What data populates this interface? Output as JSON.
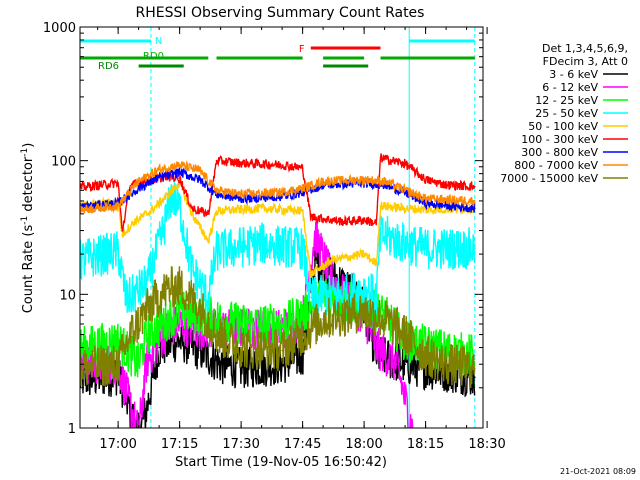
{
  "chart_data": {
    "type": "line",
    "title": "RHESSI Observing Summary Count Rates",
    "xlabel": "Start Time (19-Nov-05 16:50:42)",
    "ylabel_main": "Count Rate (s",
    "ylabel_sup1": "-1",
    "ylabel_mid": " detector",
    "ylabel_sup2": "-1",
    "ylabel_end": ")",
    "yscale": "log",
    "xlim": [
      "16:50:42",
      "18:29:00"
    ],
    "ylim": [
      1,
      1000
    ],
    "x_ticks": [
      "17:00",
      "17:15",
      "17:30",
      "17:45",
      "18:00",
      "18:15",
      "18:30"
    ],
    "y_ticks": [
      "1",
      "10",
      "100",
      "1000"
    ],
    "grid": false,
    "legend_position": "right",
    "legend_header": [
      "Det 1,3,4,5,6,9,",
      "FDecim 3, Att 0"
    ],
    "series": [
      {
        "name": "3 - 6 keV",
        "color": "#000000",
        "points": [
          [
            "16:50:42",
            2.3
          ],
          [
            "17:00",
            2.5
          ],
          [
            "17:05",
            0.9
          ],
          [
            "17:07",
            1.4
          ],
          [
            "17:10",
            4.0
          ],
          [
            "17:15",
            4.5
          ],
          [
            "17:20",
            3.8
          ],
          [
            "17:25",
            3.0
          ],
          [
            "17:30",
            2.8
          ],
          [
            "17:40",
            3.0
          ],
          [
            "17:45",
            3.5
          ],
          [
            "17:48",
            18
          ],
          [
            "17:52",
            14
          ],
          [
            "17:56",
            11
          ],
          [
            "18:00",
            8
          ],
          [
            "18:03",
            3.5
          ],
          [
            "18:10",
            3.0
          ],
          [
            "18:15",
            2.8
          ],
          [
            "18:25",
            2.5
          ],
          [
            "18:27",
            2.4
          ]
        ]
      },
      {
        "name": "6 - 12 keV",
        "color": "#ff00ff",
        "points": [
          [
            "16:50:42",
            3.0
          ],
          [
            "17:00",
            3.0
          ],
          [
            "17:05",
            0.9
          ],
          [
            "17:07",
            3.2
          ],
          [
            "17:12",
            5.5
          ],
          [
            "17:15",
            6.0
          ],
          [
            "17:20",
            5.5
          ],
          [
            "17:30",
            5.5
          ],
          [
            "17:40",
            5.5
          ],
          [
            "17:45",
            6.5
          ],
          [
            "17:48",
            28
          ],
          [
            "17:52",
            13
          ],
          [
            "17:56",
            9
          ],
          [
            "18:00",
            7
          ],
          [
            "18:03",
            4.0
          ],
          [
            "18:08",
            3.0
          ],
          [
            "18:12",
            0.9
          ]
        ]
      },
      {
        "name": "12 - 25 keV",
        "color": "#00ff00",
        "points": [
          [
            "16:50:42",
            4.0
          ],
          [
            "17:00",
            4.5
          ],
          [
            "17:05",
            3.0
          ],
          [
            "17:07",
            5.0
          ],
          [
            "17:15",
            7.5
          ],
          [
            "17:20",
            7.0
          ],
          [
            "17:25",
            6.5
          ],
          [
            "17:30",
            6.0
          ],
          [
            "17:40",
            6.0
          ],
          [
            "17:45",
            7.0
          ],
          [
            "17:50",
            10
          ],
          [
            "17:55",
            9
          ],
          [
            "18:00",
            8
          ],
          [
            "18:05",
            7
          ],
          [
            "18:10",
            4.5
          ],
          [
            "18:20",
            3.8
          ],
          [
            "18:27",
            3.5
          ]
        ]
      },
      {
        "name": "25 - 50 keV",
        "color": "#00ffff",
        "points": [
          [
            "16:50:42",
            18
          ],
          [
            "17:00",
            21
          ],
          [
            "17:02",
            9
          ],
          [
            "17:07",
            12
          ],
          [
            "17:11",
            30
          ],
          [
            "17:13",
            55
          ],
          [
            "17:15",
            45
          ],
          [
            "17:18",
            15
          ],
          [
            "17:22",
            9.5
          ],
          [
            "17:24",
            21
          ],
          [
            "17:35",
            24
          ],
          [
            "17:45",
            22
          ],
          [
            "17:47",
            9.5
          ],
          [
            "17:55",
            10
          ],
          [
            "18:00",
            11
          ],
          [
            "18:03",
            9.5
          ],
          [
            "18:04",
            28
          ],
          [
            "18:10",
            24
          ],
          [
            "18:15",
            22
          ],
          [
            "18:27",
            22
          ]
        ]
      },
      {
        "name": "50 - 100 keV",
        "color": "#ffcc00",
        "points": [
          [
            "16:50:42",
            46
          ],
          [
            "17:00",
            49
          ],
          [
            "17:01",
            28
          ],
          [
            "17:04",
            35
          ],
          [
            "17:08",
            42
          ],
          [
            "17:12",
            55
          ],
          [
            "17:15",
            68
          ],
          [
            "17:18",
            40
          ],
          [
            "17:22",
            25
          ],
          [
            "17:24",
            42
          ],
          [
            "17:35",
            44
          ],
          [
            "17:45",
            42
          ],
          [
            "17:47",
            14
          ],
          [
            "17:52",
            18
          ],
          [
            "18:00",
            20
          ],
          [
            "18:03",
            17
          ],
          [
            "18:04",
            46
          ],
          [
            "18:10",
            44
          ],
          [
            "18:15",
            43
          ],
          [
            "18:27",
            44
          ]
        ]
      },
      {
        "name": "100 - 300 keV",
        "color": "#ff0000",
        "points": [
          [
            "16:50:42",
            63
          ],
          [
            "17:00",
            68
          ],
          [
            "17:01",
            30
          ],
          [
            "17:03",
            65
          ],
          [
            "17:08",
            72
          ],
          [
            "17:12",
            76
          ],
          [
            "17:15",
            74
          ],
          [
            "17:18",
            44
          ],
          [
            "17:22",
            40
          ],
          [
            "17:24",
            100
          ],
          [
            "17:30",
            96
          ],
          [
            "17:40",
            93
          ],
          [
            "17:45",
            88
          ],
          [
            "17:47",
            38
          ],
          [
            "17:55",
            35
          ],
          [
            "18:00",
            36
          ],
          [
            "18:03",
            34
          ],
          [
            "18:04",
            105
          ],
          [
            "18:10",
            95
          ],
          [
            "18:15",
            72
          ],
          [
            "18:20",
            66
          ],
          [
            "18:27",
            64
          ]
        ]
      },
      {
        "name": "300 - 800 keV",
        "color": "#0000ff",
        "points": [
          [
            "16:50:42",
            45
          ],
          [
            "17:00",
            48
          ],
          [
            "17:05",
            62
          ],
          [
            "17:10",
            75
          ],
          [
            "17:15",
            82
          ],
          [
            "17:20",
            72
          ],
          [
            "17:24",
            56
          ],
          [
            "17:30",
            52
          ],
          [
            "17:40",
            54
          ],
          [
            "17:45",
            58
          ],
          [
            "17:50",
            66
          ],
          [
            "18:00",
            68
          ],
          [
            "18:05",
            66
          ],
          [
            "18:10",
            58
          ],
          [
            "18:15",
            48
          ],
          [
            "18:27",
            44
          ]
        ]
      },
      {
        "name": "800 - 7000 keV",
        "color": "#ff8800",
        "points": [
          [
            "16:50:42",
            43
          ],
          [
            "17:00",
            46
          ],
          [
            "17:05",
            70
          ],
          [
            "17:10",
            86
          ],
          [
            "17:15",
            93
          ],
          [
            "17:20",
            84
          ],
          [
            "17:24",
            60
          ],
          [
            "17:30",
            56
          ],
          [
            "17:40",
            58
          ],
          [
            "17:45",
            62
          ],
          [
            "17:50",
            70
          ],
          [
            "18:00",
            72
          ],
          [
            "18:05",
            70
          ],
          [
            "18:10",
            60
          ],
          [
            "18:15",
            52
          ],
          [
            "18:27",
            50
          ]
        ]
      },
      {
        "name": "7000 - 15000 keV",
        "color": "#808000",
        "points": [
          [
            "16:50:42",
            2.8
          ],
          [
            "17:00",
            3.0
          ],
          [
            "17:03",
            5.0
          ],
          [
            "17:08",
            8.5
          ],
          [
            "17:12",
            11
          ],
          [
            "17:15",
            11.5
          ],
          [
            "17:20",
            8.0
          ],
          [
            "17:24",
            5.0
          ],
          [
            "17:30",
            4.0
          ],
          [
            "17:40",
            3.8
          ],
          [
            "17:45",
            5.0
          ],
          [
            "17:50",
            6.5
          ],
          [
            "18:00",
            7.5
          ],
          [
            "18:05",
            6.5
          ],
          [
            "18:10",
            5.0
          ],
          [
            "18:15",
            3.5
          ],
          [
            "18:20",
            3.0
          ],
          [
            "18:27",
            2.8
          ]
        ]
      }
    ],
    "annotations": {
      "N": {
        "label": "N",
        "color": "#00ffff",
        "spans": [
          [
            "16:50:42",
            "17:08"
          ],
          [
            "18:11",
            "18:27"
          ]
        ]
      },
      "F": {
        "label": "F",
        "color": "#ff0000",
        "spans": [
          [
            "17:47",
            "18:04"
          ]
        ]
      },
      "RD0": {
        "label": "RD0",
        "color": "#00aa00",
        "spans": [
          [
            "16:50:42",
            "17:22"
          ],
          [
            "17:24",
            "17:45"
          ],
          [
            "17:50",
            "18:00"
          ],
          [
            "18:04",
            "18:27"
          ]
        ]
      },
      "RD6": {
        "label": "RD6",
        "color": "#008800",
        "spans": [
          [
            "17:05",
            "17:16"
          ],
          [
            "17:50",
            "18:01"
          ]
        ]
      },
      "vlines_solid": [
        "16:50:42",
        "18:11"
      ],
      "vlines_dashed": [
        "17:08",
        "18:27"
      ]
    },
    "footer_timestamp": "21-Oct-2021 08:09"
  }
}
